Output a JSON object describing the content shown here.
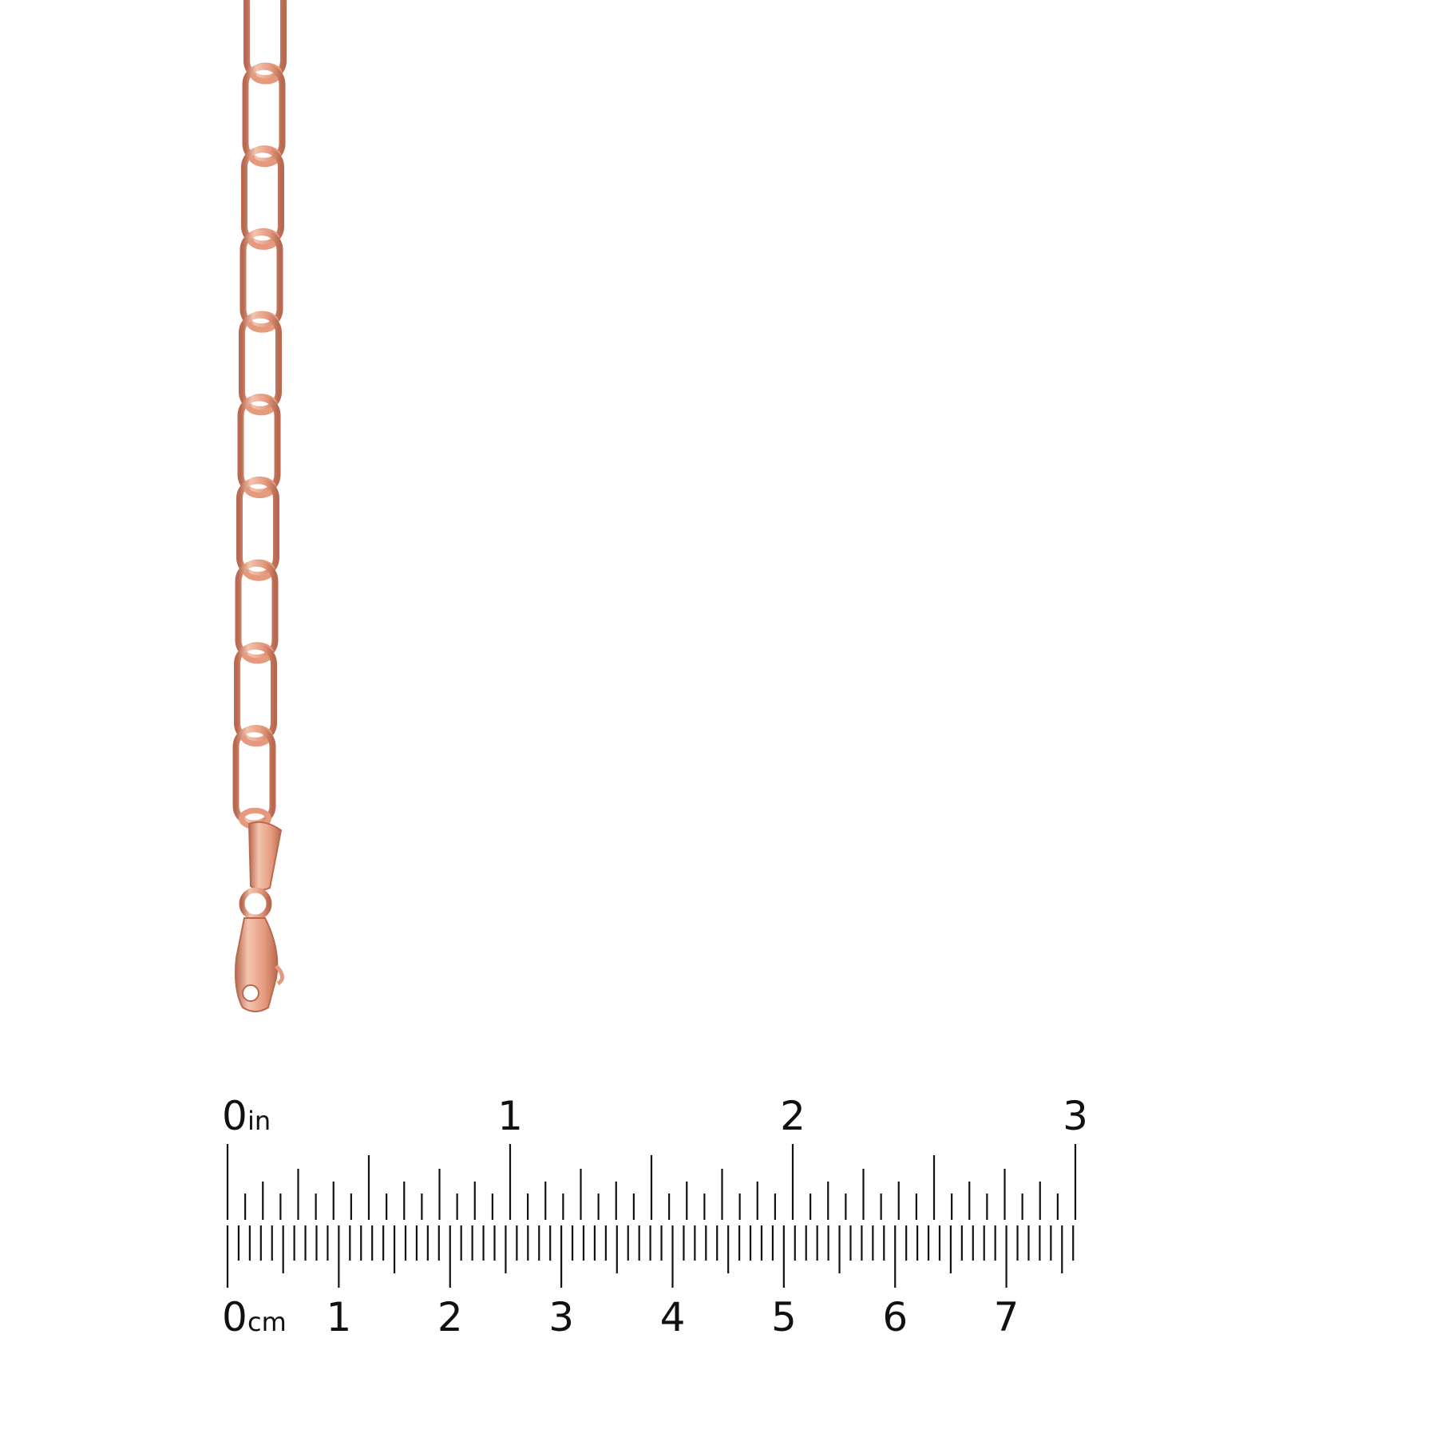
{
  "colors": {
    "metal_light": "#f3c3ae",
    "metal": "#e59a7e",
    "metal_dark": "#b8694f",
    "ruler": "#111111"
  },
  "product": {
    "type": "paperclip link chain with lobster clasp",
    "links_visible": 10
  },
  "ruler": {
    "inch": {
      "unit_label": "in",
      "labels": [
        "0",
        "1",
        "2",
        "3"
      ],
      "max": 3,
      "subdivisions": 16
    },
    "cm": {
      "unit_label": "cm",
      "labels": [
        "0",
        "1",
        "2",
        "3",
        "4",
        "5",
        "6",
        "7"
      ],
      "max_mm": 76
    }
  }
}
